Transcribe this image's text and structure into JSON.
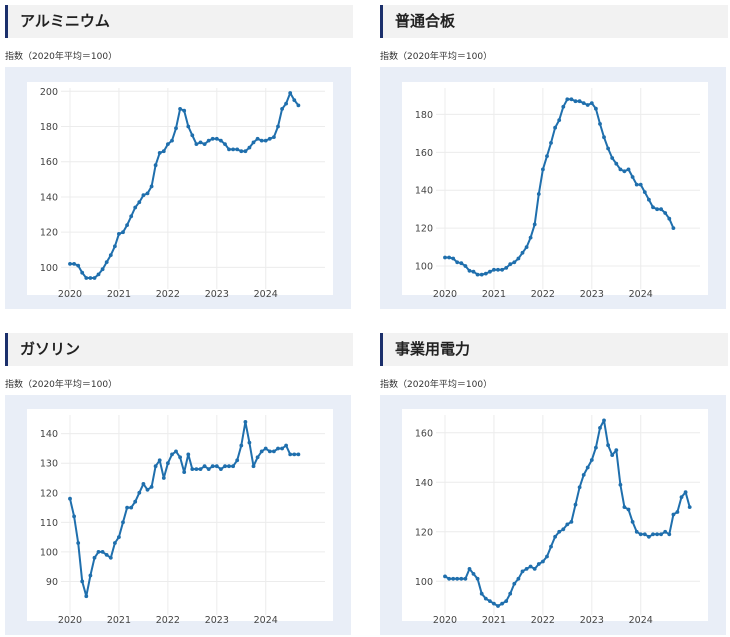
{
  "charts": [
    {
      "title": "アルミニウム",
      "unit": "指数（2020年平均＝100）",
      "chart_data": {
        "type": "line",
        "ylim": [
          90,
          203
        ],
        "yticks": [
          100,
          120,
          140,
          160,
          180,
          200
        ],
        "xticks": [
          {
            "label": "2020",
            "x": 2020
          },
          {
            "label": "2021",
            "x": 2021
          },
          {
            "label": "2022",
            "x": 2022
          },
          {
            "label": "2023",
            "x": 2023
          },
          {
            "label": "2024",
            "x": 2024
          }
        ],
        "grid": true,
        "start": 2020.0,
        "values": [
          102,
          102,
          101,
          97,
          94,
          94,
          94,
          96,
          99,
          103,
          107,
          112,
          119,
          120,
          124,
          129,
          134,
          137,
          141,
          142,
          146,
          158,
          165,
          166,
          170,
          172,
          179,
          190,
          189,
          180,
          175,
          170,
          171,
          170,
          172,
          173,
          173,
          172,
          170,
          167,
          167,
          167,
          166,
          166,
          168,
          171,
          173,
          172,
          172,
          173,
          174,
          180,
          190,
          193,
          199,
          195,
          192
        ]
      }
    },
    {
      "title": "普通合板",
      "unit": "指数（2020年平均＝100）",
      "chart_data": {
        "type": "line",
        "ylim": [
          90,
          195
        ],
        "yticks": [
          100,
          120,
          140,
          160,
          180
        ],
        "xticks": [
          {
            "label": "2020",
            "x": 2020
          },
          {
            "label": "2021",
            "x": 2021
          },
          {
            "label": "2022",
            "x": 2022
          },
          {
            "label": "2023",
            "x": 2023
          },
          {
            "label": "2024",
            "x": 2024
          }
        ],
        "grid": true,
        "start": 2020.0,
        "values": [
          104.5,
          104.5,
          104,
          102,
          101.5,
          100,
          97.5,
          97,
          95.5,
          95.5,
          96,
          97,
          98,
          98,
          98,
          99,
          101,
          102,
          104,
          107,
          110,
          115,
          122,
          138,
          151,
          158,
          165,
          173,
          177,
          184,
          188,
          188,
          187,
          187,
          186,
          185,
          186,
          183,
          175,
          168,
          162,
          157,
          154,
          151,
          150,
          151,
          147,
          143,
          143,
          139,
          135,
          131,
          130,
          130,
          128,
          125,
          120
        ]
      }
    },
    {
      "title": "ガソリン",
      "unit": "指数（2020年平均＝100）",
      "chart_data": {
        "type": "line",
        "ylim": [
          80,
          147
        ],
        "yticks": [
          90,
          100,
          110,
          120,
          130,
          140
        ],
        "xticks": [
          {
            "label": "2020",
            "x": 2020
          },
          {
            "label": "2021",
            "x": 2021
          },
          {
            "label": "2022",
            "x": 2022
          },
          {
            "label": "2023",
            "x": 2023
          },
          {
            "label": "2024",
            "x": 2024
          }
        ],
        "grid": true,
        "start": 2020.0,
        "values": [
          118,
          112,
          103,
          90,
          85,
          92,
          98,
          100,
          100,
          99,
          98,
          103,
          105,
          110,
          115,
          115,
          117,
          120,
          123,
          121,
          122,
          129,
          131,
          125,
          130,
          133,
          134,
          132,
          127,
          133,
          128,
          128,
          128,
          129,
          128,
          129,
          129,
          128,
          129,
          129,
          129,
          131,
          136,
          144,
          137,
          129,
          132,
          134,
          135,
          134,
          134,
          135,
          135,
          136,
          133,
          133,
          133
        ]
      }
    },
    {
      "title": "事業用電力",
      "unit": "指数（2020年平均＝100）",
      "chart_data": {
        "type": "line",
        "ylim": [
          88,
          168
        ],
        "yticks": [
          100,
          120,
          140,
          160
        ],
        "xticks": [
          {
            "label": "2020",
            "x": 2020
          },
          {
            "label": "2021",
            "x": 2021
          },
          {
            "label": "2022",
            "x": 2022
          },
          {
            "label": "2023",
            "x": 2023
          },
          {
            "label": "2024",
            "x": 2024
          }
        ],
        "grid": true,
        "start": 2020.0,
        "values": [
          102,
          101,
          101,
          101,
          101,
          101,
          105,
          103,
          101,
          95,
          93,
          92,
          91,
          90,
          91,
          92,
          95,
          99,
          101,
          104,
          105,
          106,
          105,
          107,
          108,
          110,
          114,
          118,
          120,
          121,
          123,
          124,
          131,
          138,
          143,
          146,
          149,
          154,
          162,
          165,
          155,
          151,
          153,
          139,
          130,
          129,
          124,
          120,
          119,
          119,
          118,
          119,
          119,
          119,
          120,
          119,
          127,
          128,
          134,
          136,
          130
        ]
      }
    }
  ]
}
